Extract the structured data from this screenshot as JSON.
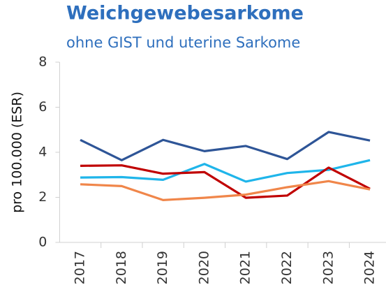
{
  "chart_data": {
    "type": "line",
    "title": "Weichgewebesarkome",
    "subtitle": "ohne GIST und uterine Sarkome",
    "y_label": "pro 100.000 (ESR)",
    "categories": [
      "2017",
      "2018",
      "2019",
      "2020",
      "2021",
      "2022",
      "2023",
      "2024"
    ],
    "series": [
      {
        "color": "#2e5597",
        "values": [
          4.55,
          3.65,
          4.55,
          4.05,
          4.28,
          3.7,
          4.9,
          4.52
        ]
      },
      {
        "color": "#1fb5ea",
        "values": [
          2.88,
          2.9,
          2.78,
          3.48,
          2.7,
          3.08,
          3.22,
          3.65
        ]
      },
      {
        "color": "#c00000",
        "values": [
          3.4,
          3.42,
          3.05,
          3.12,
          1.98,
          2.08,
          3.32,
          2.38
        ]
      },
      {
        "color": "#f0864a",
        "values": [
          2.58,
          2.5,
          1.88,
          1.98,
          2.12,
          2.45,
          2.72,
          2.35
        ]
      }
    ],
    "ylim": [
      0,
      8
    ],
    "yticks": [
      0,
      2,
      4,
      6,
      8
    ],
    "grid": false
  }
}
